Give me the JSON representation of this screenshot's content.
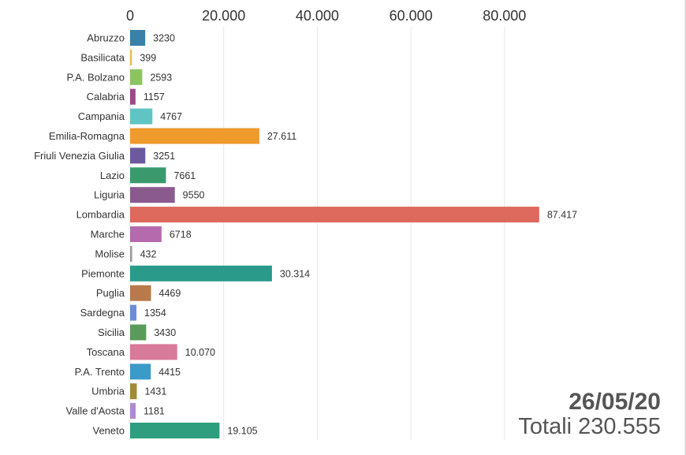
{
  "chart_data": {
    "type": "bar",
    "orientation": "horizontal",
    "x_ticks": [
      "0",
      "20.000",
      "40.000",
      "60.000",
      "80.000"
    ],
    "x_tick_values": [
      0,
      20000,
      40000,
      60000,
      80000
    ],
    "xlim": [
      0,
      88000
    ],
    "grid": true,
    "categories": [
      "Abruzzo",
      "Basilicata",
      "P.A. Bolzano",
      "Calabria",
      "Campania",
      "Emilia-Romagna",
      "Friuli Venezia Giulia",
      "Lazio",
      "Liguria",
      "Lombardia",
      "Marche",
      "Molise",
      "Piemonte",
      "Puglia",
      "Sardegna",
      "Sicilia",
      "Toscana",
      "P.A. Trento",
      "Umbria",
      "Valle d'Aosta",
      "Veneto"
    ],
    "values": [
      3230,
      399,
      2593,
      1157,
      4767,
      27611,
      3251,
      7661,
      9550,
      87417,
      6718,
      432,
      30314,
      4469,
      1354,
      3430,
      10070,
      4415,
      1431,
      1181,
      19105
    ],
    "value_labels": [
      "3230",
      "399",
      "2593",
      "1157",
      "4767",
      "27.611",
      "3251",
      "7661",
      "9550",
      "87.417",
      "6718",
      "432",
      "30.314",
      "4469",
      "1354",
      "3430",
      "10.070",
      "4415",
      "1431",
      "1181",
      "19.105"
    ],
    "colors": [
      "#3a80a8",
      "#e6c24a",
      "#8cc461",
      "#9b4a8a",
      "#5fc4c4",
      "#ee9a2c",
      "#6c5a9e",
      "#3a9a6e",
      "#8a5a8e",
      "#dd6a5c",
      "#b56aae",
      "#9a9a9a",
      "#2a9a8a",
      "#b87a4a",
      "#6a8ed8",
      "#5a9a5a",
      "#d87a9a",
      "#3a9ac8",
      "#a08a3a",
      "#b08ad0",
      "#2e9e7e"
    ]
  },
  "date": "26/05/20",
  "total": "Totali 230.555"
}
